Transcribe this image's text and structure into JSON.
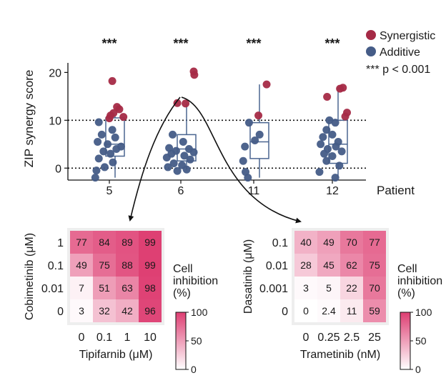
{
  "chart_data": [
    {
      "type": "scatter",
      "ylabel": "ZIP synergy score",
      "xlabel": "Patient",
      "ylim": [
        -2.5,
        22
      ],
      "yticks": [
        0,
        10,
        20
      ],
      "reference_lines": [
        0,
        10
      ],
      "categories": [
        "5",
        "6",
        "11",
        "12"
      ],
      "significance": [
        "***",
        "***",
        "***",
        "***"
      ],
      "legend": {
        "position": "top-right",
        "entries": [
          {
            "name": "Synergistic",
            "color": "#a52a46"
          },
          {
            "name": "Additive",
            "color": "#455c87"
          }
        ],
        "note": "*** p < 0.001"
      },
      "boxes": [
        {
          "category": "5",
          "q1": 2.5,
          "median": 5,
          "q3": 10.5,
          "whisker_low": -2,
          "whisker_high": 10.8
        },
        {
          "category": "6",
          "q1": 1.5,
          "median": 4,
          "q3": 7,
          "whisker_low": -0.5,
          "whisker_high": 13.5
        },
        {
          "category": "11",
          "q1": 2,
          "median": 5.5,
          "q3": 9.5,
          "whisker_low": -2,
          "whisker_high": 17.5
        },
        {
          "category": "12",
          "q1": 1,
          "median": 5,
          "q3": 10,
          "whisker_low": -2,
          "whisker_high": 17
        }
      ],
      "series": [
        {
          "name": "Synergistic",
          "color": "#a52a46",
          "points": [
            {
              "x": "5",
              "y": 18.2,
              "dx": 0.05
            },
            {
              "x": "5",
              "y": 12.8,
              "dx": 0.13
            },
            {
              "x": "5",
              "y": 12.3,
              "dx": 0.17
            },
            {
              "x": "5",
              "y": 11.5,
              "dx": 0.07
            },
            {
              "x": "5",
              "y": 11.0,
              "dx": 0.02
            },
            {
              "x": "5",
              "y": 10.7,
              "dx": 0.24
            },
            {
              "x": "5",
              "y": 10.4,
              "dx": 0.0
            },
            {
              "x": "6",
              "y": 20.2,
              "dx": 0.22
            },
            {
              "x": "6",
              "y": 19.5,
              "dx": 0.23
            },
            {
              "x": "6",
              "y": 13.6,
              "dx": -0.06
            },
            {
              "x": "6",
              "y": 13.5,
              "dx": 0.08
            },
            {
              "x": "11",
              "y": 17.5,
              "dx": 0.22
            },
            {
              "x": "11",
              "y": 11.0,
              "dx": 0.08
            },
            {
              "x": "12",
              "y": 16.8,
              "dx": 0.18
            },
            {
              "x": "12",
              "y": 16.6,
              "dx": 0.13
            },
            {
              "x": "12",
              "y": 14.9,
              "dx": -0.09
            },
            {
              "x": "12",
              "y": 11.6,
              "dx": 0.25
            },
            {
              "x": "12",
              "y": 10.8,
              "dx": 0.22
            }
          ]
        },
        {
          "name": "Additive",
          "color": "#455c87",
          "points": [
            {
              "x": "5",
              "y": 9.6,
              "dx": -0.18
            },
            {
              "x": "5",
              "y": 8.0,
              "dx": 0.05
            },
            {
              "x": "5",
              "y": 7.0,
              "dx": -0.13
            },
            {
              "x": "5",
              "y": 6.4,
              "dx": 0.1
            },
            {
              "x": "5",
              "y": 5.5,
              "dx": -0.2
            },
            {
              "x": "5",
              "y": 5.0,
              "dx": -0.03
            },
            {
              "x": "5",
              "y": 4.5,
              "dx": 0.2
            },
            {
              "x": "5",
              "y": 4.0,
              "dx": 0.12
            },
            {
              "x": "5",
              "y": 3.5,
              "dx": -0.1
            },
            {
              "x": "5",
              "y": 3.0,
              "dx": 0.02
            },
            {
              "x": "5",
              "y": 2.0,
              "dx": -0.18
            },
            {
              "x": "5",
              "y": 1.2,
              "dx": 0.06
            },
            {
              "x": "5",
              "y": 0.2,
              "dx": -0.08
            },
            {
              "x": "5",
              "y": -0.5,
              "dx": -0.22
            },
            {
              "x": "5",
              "y": -2.0,
              "dx": -0.24
            },
            {
              "x": "6",
              "y": 7.0,
              "dx": -0.14
            },
            {
              "x": "6",
              "y": 5.5,
              "dx": 0.04
            },
            {
              "x": "6",
              "y": 4.2,
              "dx": -0.2
            },
            {
              "x": "6",
              "y": 4.0,
              "dx": 0.14
            },
            {
              "x": "6",
              "y": 3.6,
              "dx": -0.08
            },
            {
              "x": "6",
              "y": 3.3,
              "dx": 0.22
            },
            {
              "x": "6",
              "y": 3.0,
              "dx": -0.16
            },
            {
              "x": "6",
              "y": 2.6,
              "dx": 0.06
            },
            {
              "x": "6",
              "y": 2.2,
              "dx": -0.24
            },
            {
              "x": "6",
              "y": 1.8,
              "dx": 0.16
            },
            {
              "x": "6",
              "y": 1.0,
              "dx": -0.12
            },
            {
              "x": "6",
              "y": 0.6,
              "dx": 0.02
            },
            {
              "x": "6",
              "y": 0.2,
              "dx": -0.22
            },
            {
              "x": "6",
              "y": -0.3,
              "dx": 0.1
            },
            {
              "x": "6",
              "y": -0.6,
              "dx": -0.06
            },
            {
              "x": "11",
              "y": 9.5,
              "dx": -0.08
            },
            {
              "x": "11",
              "y": 7.0,
              "dx": 0.1
            },
            {
              "x": "11",
              "y": 5.8,
              "dx": 0.02
            },
            {
              "x": "11",
              "y": 4.5,
              "dx": -0.15
            },
            {
              "x": "11",
              "y": 1.5,
              "dx": -0.18
            },
            {
              "x": "11",
              "y": -0.8,
              "dx": -0.14
            },
            {
              "x": "11",
              "y": -2.0,
              "dx": -0.1
            },
            {
              "x": "12",
              "y": 10.0,
              "dx": -0.05
            },
            {
              "x": "12",
              "y": 9.5,
              "dx": 0.05
            },
            {
              "x": "12",
              "y": 8.0,
              "dx": -0.1
            },
            {
              "x": "12",
              "y": 7.0,
              "dx": 0.0
            },
            {
              "x": "12",
              "y": 6.5,
              "dx": -0.16
            },
            {
              "x": "12",
              "y": 5.5,
              "dx": 0.1
            },
            {
              "x": "12",
              "y": 5.0,
              "dx": -0.2
            },
            {
              "x": "12",
              "y": 4.5,
              "dx": 0.06
            },
            {
              "x": "12",
              "y": 4.0,
              "dx": -0.08
            },
            {
              "x": "12",
              "y": 3.5,
              "dx": 0.16
            },
            {
              "x": "12",
              "y": 3.0,
              "dx": -0.14
            },
            {
              "x": "12",
              "y": 2.5,
              "dx": 0.0
            },
            {
              "x": "12",
              "y": 1.5,
              "dx": -0.1
            },
            {
              "x": "12",
              "y": 0.5,
              "dx": 0.12
            },
            {
              "x": "12",
              "y": -0.8,
              "dx": -0.22
            },
            {
              "x": "12",
              "y": -2.0,
              "dx": 0.05
            }
          ]
        }
      ]
    },
    {
      "type": "heatmap",
      "source": "6",
      "xlabel": "Tipifarnib (μM)",
      "ylabel": "Cobimetinib (μM)",
      "x_categories": [
        "0",
        "0.1",
        "1",
        "10"
      ],
      "y_categories": [
        "1",
        "0.1",
        "0.01",
        "0"
      ],
      "values": [
        [
          77,
          84,
          89,
          99
        ],
        [
          49,
          75,
          88,
          99
        ],
        [
          7,
          51,
          63,
          98
        ],
        [
          3,
          32,
          42,
          96
        ]
      ],
      "colorbar": {
        "title": [
          "Cell",
          "inhibition",
          "(%)"
        ],
        "range": [
          0,
          100
        ],
        "ticks": [
          "100",
          "50",
          "0"
        ],
        "color": "#de3e72"
      }
    },
    {
      "type": "heatmap",
      "source": "6",
      "xlabel": "Trametinib (nM)",
      "ylabel": "Dasatinib (μM)",
      "x_categories": [
        "0",
        "0.25",
        "2.5",
        "25"
      ],
      "y_categories": [
        "0.1",
        "0.01",
        "0.001",
        "0"
      ],
      "values": [
        [
          40,
          49,
          70,
          77
        ],
        [
          28,
          45,
          62,
          75
        ],
        [
          3,
          5,
          22,
          70
        ],
        [
          0,
          2.4,
          11,
          59
        ]
      ],
      "colorbar": {
        "title": [
          "Cell",
          "inhibition",
          "(%)"
        ],
        "range": [
          0,
          100
        ],
        "ticks": [
          "100",
          "50",
          "0"
        ],
        "color": "#de3e72"
      }
    }
  ]
}
